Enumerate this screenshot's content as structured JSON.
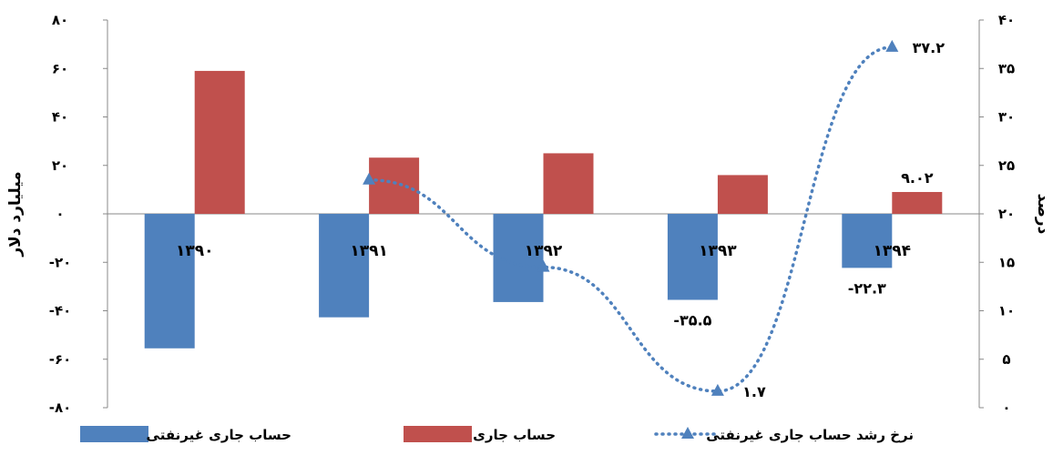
{
  "chart_data": {
    "type": "bar",
    "categories": [
      "۱۳۹۰",
      "۱۳۹۱",
      "۱۳۹۲",
      "۱۳۹۳",
      "۱۳۹۴"
    ],
    "series": [
      {
        "name": "حساب جاری غیرنفتی",
        "type": "bar",
        "axis": "left",
        "color": "#4f81bd",
        "values": [
          -55.5,
          -42.7,
          -36.4,
          -35.5,
          -22.3
        ],
        "data_labels": [
          "",
          "",
          "",
          "-۳۵.۵",
          "-۲۲.۳"
        ]
      },
      {
        "name": "حساب جاری",
        "type": "bar",
        "axis": "left",
        "color": "#c0504d",
        "values": [
          59,
          23.2,
          25,
          16,
          9.02
        ],
        "data_labels": [
          "",
          "",
          "",
          "",
          "۹.۰۲"
        ]
      },
      {
        "name": "نرخ رشد حساب جاری غیرنفتی",
        "type": "line",
        "axis": "right",
        "color": "#4f81bd",
        "values": [
          null,
          23.5,
          14.5,
          1.7,
          37.2
        ],
        "data_labels": [
          "",
          "",
          "",
          "۱.۷",
          "۳۷.۲"
        ]
      }
    ],
    "left_axis": {
      "label": "میلیارد دلار",
      "ylim": [
        -80,
        80
      ],
      "ticks": [
        -80,
        -60,
        -40,
        -20,
        0,
        20,
        40,
        60,
        80
      ],
      "tick_labels": [
        "-۸۰",
        "-۶۰",
        "-۴۰",
        "-۲۰",
        "۰",
        "۲۰",
        "۴۰",
        "۶۰",
        "۸۰"
      ]
    },
    "right_axis": {
      "label": "درصد",
      "ylim": [
        0,
        40
      ],
      "ticks": [
        0,
        5,
        10,
        15,
        20,
        25,
        30,
        35,
        40
      ],
      "tick_labels": [
        "۰",
        "۵",
        "۱۰",
        "۱۵",
        "۲۰",
        "۲۵",
        "۳۰",
        "۳۵",
        "۴۰"
      ]
    },
    "legend_position": "bottom",
    "grid": false
  }
}
